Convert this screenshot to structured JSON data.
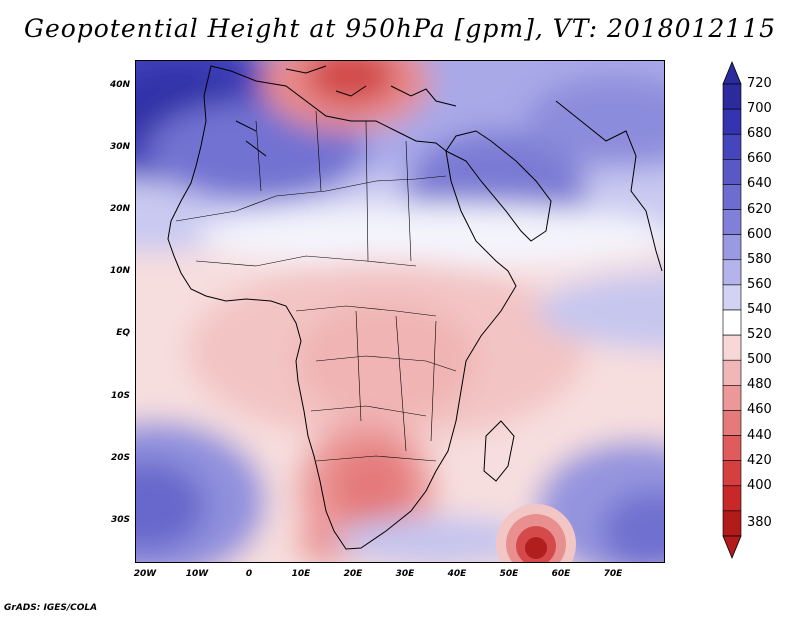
{
  "title": "Geopotential Height at 950hPa [gpm], VT: 2018012115",
  "map": {
    "variable": "Geopotential Height",
    "level": "950hPa",
    "units": "gpm",
    "valid_time": "2018012115",
    "lat_labels": [
      "40N",
      "30N",
      "20N",
      "10N",
      "EQ",
      "10S",
      "20S",
      "30S"
    ],
    "lon_labels": [
      "20W",
      "10W",
      "0",
      "10E",
      "20E",
      "30E",
      "40E",
      "50E",
      "60E",
      "70E"
    ]
  },
  "colorbar": {
    "levels": [
      "720",
      "700",
      "680",
      "660",
      "640",
      "620",
      "600",
      "580",
      "560",
      "540",
      "520",
      "500",
      "480",
      "460",
      "440",
      "420",
      "400",
      "380"
    ],
    "colors": [
      "#2b2b9e",
      "#3434b0",
      "#4545bc",
      "#5959c6",
      "#6d6dd0",
      "#8080d9",
      "#9a9ae2",
      "#b4b4ea",
      "#d2d2f3",
      "#ffffff",
      "#f7d7d7",
      "#f1b7b7",
      "#ec9898",
      "#e67a7a",
      "#e05c5c",
      "#d63f3f",
      "#c82828",
      "#b31b1b"
    ]
  },
  "credit": "GrADS: IGES/COLA"
}
